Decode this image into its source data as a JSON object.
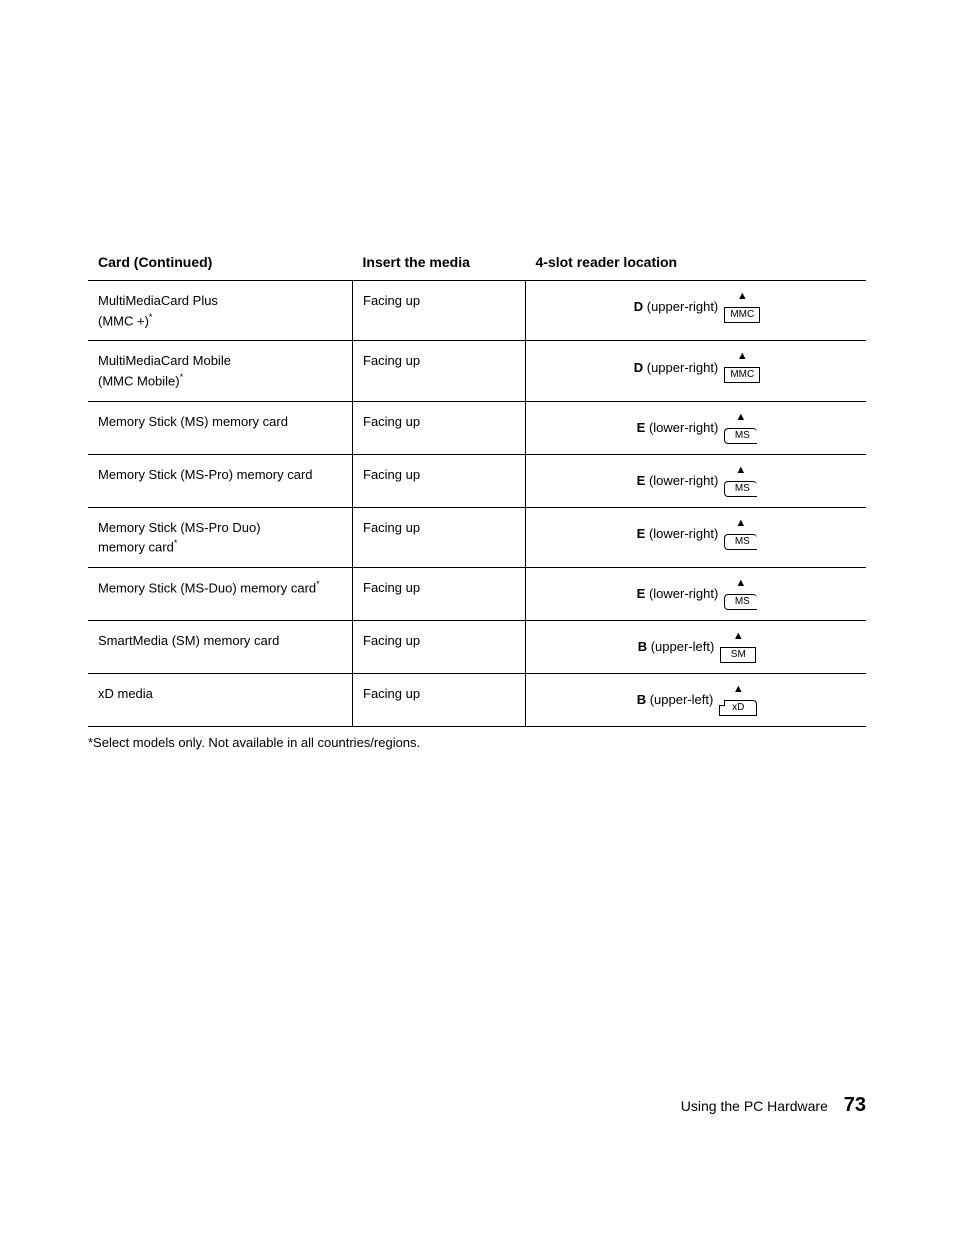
{
  "headers": {
    "card": "Card (Continued)",
    "insert": "Insert the media",
    "location": "4-slot reader location"
  },
  "rows": [
    {
      "card_html": "MultiMediaCard Plus<br>(MMC +)<sup>*</sup>",
      "insert": "Facing up",
      "loc_letter": "D",
      "loc_pos": "(upper-right)",
      "slot_label": "MMC",
      "slot_style": "square"
    },
    {
      "card_html": "MultiMediaCard Mobile<br>(MMC Mobile)<sup>*</sup>",
      "insert": "Facing up",
      "loc_letter": "D",
      "loc_pos": "(upper-right)",
      "slot_label": "MMC",
      "slot_style": "square"
    },
    {
      "card_html": "Memory Stick (MS) memory card",
      "insert": "Facing up",
      "loc_letter": "E",
      "loc_pos": "(lower-right)",
      "slot_label": "MS",
      "slot_style": "open-right"
    },
    {
      "card_html": "Memory Stick (MS-Pro) memory card",
      "insert": "Facing up",
      "loc_letter": "E",
      "loc_pos": "(lower-right)",
      "slot_label": "MS",
      "slot_style": "open-right"
    },
    {
      "card_html": "Memory Stick (MS-Pro Duo)<br>memory card<sup>*</sup>",
      "insert": "Facing up",
      "loc_letter": "E",
      "loc_pos": "(lower-right)",
      "slot_label": "MS",
      "slot_style": "open-right"
    },
    {
      "card_html": "Memory Stick (MS-Duo) memory card<sup>*</sup>",
      "insert": "Facing up",
      "loc_letter": "E",
      "loc_pos": "(lower-right)",
      "slot_label": "MS",
      "slot_style": "open-right"
    },
    {
      "card_html": "SmartMedia (SM) memory card",
      "insert": "Facing up",
      "loc_letter": "B",
      "loc_pos": "(upper-left)",
      "slot_label": "SM",
      "slot_style": "square"
    },
    {
      "card_html": "xD media",
      "insert": "Facing up",
      "loc_letter": "B",
      "loc_pos": "(upper-left)",
      "slot_label": "xD",
      "slot_style": "notch"
    }
  ],
  "footnote": "*Select models only. Not available in all countries/regions.",
  "footer_text": "Using the PC Hardware",
  "page_number": "73"
}
